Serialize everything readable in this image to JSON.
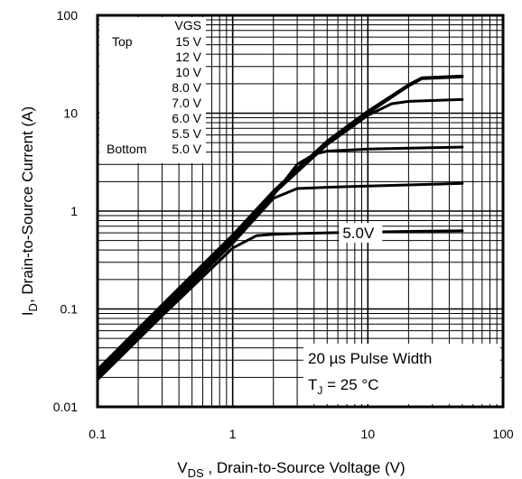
{
  "chart_data": {
    "type": "line",
    "title": "",
    "xscale": "log",
    "yscale": "log",
    "xlim": [
      0.1,
      100
    ],
    "ylim": [
      0.01,
      100
    ],
    "grid": true,
    "xticks": [
      {
        "value": 0.1,
        "label": "0.1"
      },
      {
        "value": 1,
        "label": "1"
      },
      {
        "value": 10,
        "label": "10"
      },
      {
        "value": 100,
        "label": "100"
      }
    ],
    "yticks": [
      {
        "value": 0.01,
        "label": "0.01"
      },
      {
        "value": 0.1,
        "label": "0.1"
      },
      {
        "value": 1,
        "label": "1"
      },
      {
        "value": 10,
        "label": "10"
      },
      {
        "value": 100,
        "label": "100"
      }
    ],
    "xlabel": {
      "main": "V",
      "sub": "DS",
      "rest": " , Drain-to-Source Voltage (V)"
    },
    "ylabel": {
      "main": "I",
      "sub": "D",
      "rest": ", Drain-to-Source Current (A)"
    },
    "legend": {
      "placement": "top-left",
      "header": "VGS",
      "entries": [
        {
          "prefix": "Top",
          "value": "15 V"
        },
        {
          "prefix": "",
          "value": "12 V"
        },
        {
          "prefix": "",
          "value": "10 V"
        },
        {
          "prefix": "",
          "value": "8.0 V"
        },
        {
          "prefix": "",
          "value": "7.0 V"
        },
        {
          "prefix": "",
          "value": "6.0 V"
        },
        {
          "prefix": "",
          "value": "5.5 V"
        },
        {
          "prefix": "Bottom",
          "value": "5.0 V"
        }
      ]
    },
    "curve_label": {
      "text": "5.0V",
      "x": 6.5,
      "y": 0.6
    },
    "annotation": {
      "line1": "20 µs Pulse Width",
      "line2_main": "T",
      "line2_sub": "J",
      "line2_rest": " = 25 °C"
    },
    "series": [
      {
        "x": [
          0.1,
          0.3,
          1,
          1.5,
          2,
          3,
          5,
          10,
          20,
          50
        ],
        "y": [
          0.019,
          0.085,
          0.42,
          0.56,
          0.58,
          0.59,
          0.6,
          0.61,
          0.62,
          0.63
        ]
      },
      {
        "x": [
          0.1,
          0.3,
          1,
          2,
          3,
          5,
          10,
          20,
          50
        ],
        "y": [
          0.02,
          0.09,
          0.47,
          1.35,
          1.7,
          1.75,
          1.8,
          1.85,
          1.92
        ]
      },
      {
        "x": [
          0.1,
          0.3,
          1,
          2,
          3,
          4,
          5,
          10,
          20,
          50
        ],
        "y": [
          0.021,
          0.095,
          0.5,
          1.45,
          3.0,
          3.8,
          4.1,
          4.3,
          4.4,
          4.5
        ]
      },
      {
        "x": [
          0.1,
          0.3,
          1,
          2,
          5,
          10,
          15,
          20,
          50
        ],
        "y": [
          0.022,
          0.1,
          0.52,
          1.5,
          4.8,
          9.5,
          12.5,
          13.2,
          13.8
        ]
      },
      {
        "x": [
          0.1,
          0.3,
          1,
          2,
          5,
          10,
          20,
          25,
          50
        ],
        "y": [
          0.023,
          0.105,
          0.55,
          1.55,
          5.0,
          10.0,
          19.0,
          22.5,
          23.5
        ]
      },
      {
        "x": [
          0.1,
          0.3,
          1,
          2,
          5,
          10,
          20,
          25,
          50
        ],
        "y": [
          0.024,
          0.11,
          0.57,
          1.6,
          5.2,
          10.5,
          19.5,
          23.0,
          24.0
        ]
      }
    ]
  }
}
